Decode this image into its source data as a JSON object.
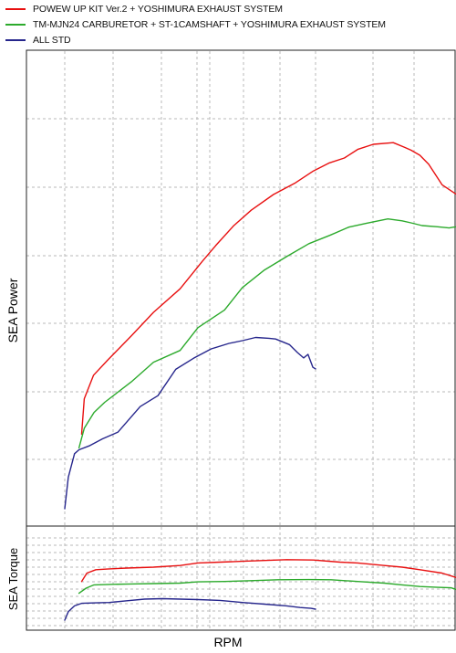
{
  "chart_data": [
    {
      "type": "line",
      "panel": "power",
      "title": "",
      "xlabel": "RPM",
      "ylabel": "SEA Power",
      "x_tick_labels": "none",
      "y_tick_labels": "none",
      "grid": true,
      "legend_placement": "top-left, above chart",
      "xlim": [
        0,
        100
      ],
      "ylim": [
        0,
        100
      ],
      "series": [
        {
          "name": "POWEW UP KIT Ver.2 + YOSHIMURA EXHAUST SYSTEM",
          "color": "#e81010",
          "x": [
            3.8,
            4.4,
            6.5,
            9.8,
            15,
            20,
            26,
            31,
            34,
            38,
            42,
            47,
            52,
            56,
            59.5,
            63,
            66,
            69.5,
            74,
            76.6,
            78,
            80,
            82,
            85,
            88,
            89.7,
            90.7,
            91.5,
            91.9,
            93
          ],
          "y": [
            19,
            28,
            34,
            38,
            44,
            50,
            56,
            63,
            67,
            72,
            76,
            80,
            83,
            86,
            88,
            89.3,
            91.5,
            92.8,
            93.2,
            92,
            91.3,
            90,
            87.7,
            82.5,
            80.2,
            79.7,
            80.6,
            80.6,
            79.2,
            66
          ]
        },
        {
          "name": "TM-MJN24 CARBURETOR + ST-1CAMSHAFT + YOSHIMURA EXHAUST SYSTEM",
          "color": "#2caa2c",
          "x": [
            3.2,
            4.4,
            6.6,
            9,
            15,
            20,
            26,
            30,
            36,
            40,
            45,
            50,
            55,
            59.7,
            64,
            68,
            72.8,
            76,
            78,
            80.5,
            84,
            86.6,
            87.6,
            88.3,
            88.9,
            89.4
          ],
          "y": [
            15.5,
            20.5,
            24.5,
            27.1,
            32.3,
            37.3,
            40.3,
            46.1,
            50.6,
            56.3,
            60.8,
            64.2,
            67.5,
            69.6,
            71.7,
            72.7,
            73.8,
            73.3,
            72.8,
            72.1,
            71.8,
            71.5,
            71.7,
            71.8,
            68,
            54.1
          ]
        },
        {
          "name": "ALL STD",
          "color": "#26268c",
          "x": [
            0,
            0.8,
            2.2,
            3.2,
            5.5,
            8.5,
            12,
            17,
            21,
            25,
            29,
            33,
            37,
            40,
            43,
            46,
            47.5,
            50.6,
            52.4,
            53.8,
            54.8,
            55.9,
            56.5
          ],
          "y": [
            0,
            8,
            14,
            15,
            16,
            17.8,
            19.5,
            26,
            28.8,
            35.5,
            38.3,
            40.7,
            42.1,
            42.8,
            43.6,
            43.4,
            43.2,
            41.8,
            39.8,
            38.4,
            39.3,
            36,
            35.6
          ]
        }
      ]
    },
    {
      "type": "line",
      "panel": "torque",
      "title": "",
      "xlabel": "RPM",
      "ylabel": "SEA Torque",
      "x_tick_labels": "none",
      "y_tick_labels": "none",
      "grid": true,
      "xlim": [
        0,
        100
      ],
      "ylim": [
        0,
        100
      ],
      "series": [
        {
          "name": "POWEW UP KIT Ver.2 + YOSHIMURA EXHAUST SYSTEM",
          "color": "#e81010",
          "x": [
            3.8,
            5,
            7,
            10,
            14,
            20,
            26,
            30,
            35,
            40,
            45,
            50,
            56,
            62,
            66,
            72,
            76,
            80,
            85,
            88,
            90.2,
            91.1,
            91.5,
            92.8
          ],
          "y": [
            46,
            56,
            60,
            61,
            62,
            63,
            65,
            68,
            69,
            70,
            71,
            72,
            71.5,
            69,
            68,
            65,
            63,
            60,
            56,
            51,
            49,
            46,
            45,
            42
          ]
        },
        {
          "name": "TM-MJN24 CARBURETOR + ST-1CAMSHAFT + YOSHIMURA EXHAUST SYSTEM",
          "color": "#2caa2c",
          "x": [
            3.2,
            4.8,
            6.6,
            10,
            15,
            20,
            26,
            30,
            36,
            42,
            48,
            55,
            60,
            66,
            72,
            76,
            80,
            84,
            87,
            88.5,
            89.3
          ],
          "y": [
            32,
            38,
            42,
            42.5,
            43,
            43.5,
            44,
            45.5,
            46,
            47,
            48,
            48.3,
            48,
            46,
            44,
            42,
            40,
            39,
            38.5,
            36,
            33
          ]
        },
        {
          "name": "ALL STD",
          "color": "#26268c",
          "x": [
            0,
            0.8,
            2.2,
            3.8,
            7,
            10,
            14,
            18,
            22,
            26,
            30,
            35,
            40,
            45,
            50,
            53,
            55.5,
            56.5
          ],
          "y": [
            0,
            10,
            17,
            20,
            20.5,
            21,
            23,
            25,
            25.5,
            25,
            24.5,
            23.5,
            21,
            19,
            17,
            15,
            14,
            13
          ]
        }
      ]
    }
  ]
}
